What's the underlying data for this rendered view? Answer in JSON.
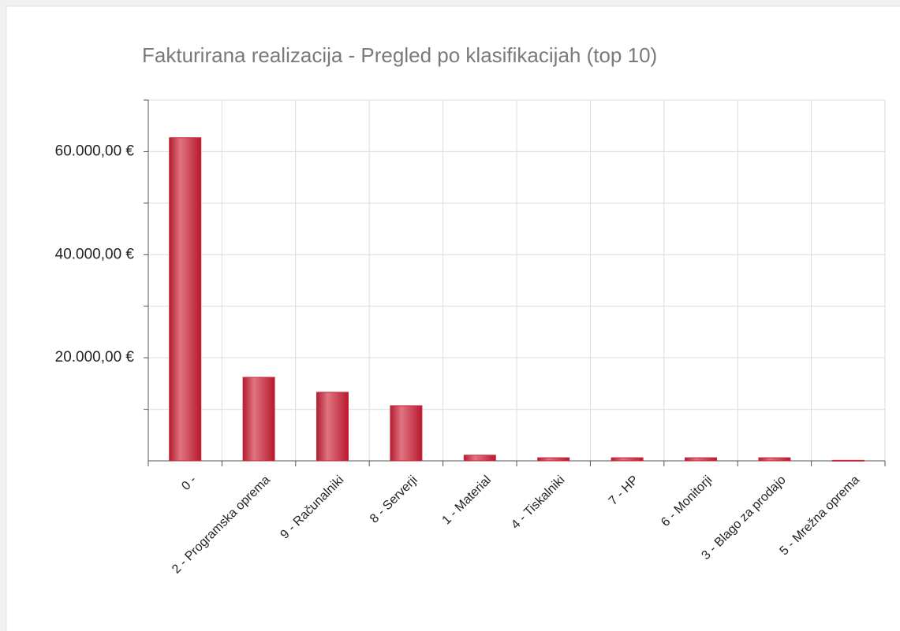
{
  "chart_data": {
    "type": "bar",
    "title": "Fakturirana realizacija - Pregled po klasifikacijah (top 10)",
    "categories": [
      "0 -",
      "2 - Programska oprema",
      "9 - Računalniki",
      "8 - Serverji",
      "1 - Material",
      "4 - Tiskalniki",
      "7 - HP",
      "6 - Monitorji",
      "3 - Blago za prodajo",
      "5 - Mrežna oprema"
    ],
    "values": [
      62700,
      16200,
      13300,
      10700,
      1100,
      600,
      600,
      600,
      600,
      100
    ],
    "color": "#c8273a",
    "ylim": [
      0,
      70000
    ],
    "yticks": [
      {
        "value": 20000,
        "label": "20.000,00 €"
      },
      {
        "value": 40000,
        "label": "40.000,00 €"
      },
      {
        "value": 60000,
        "label": "60.000,00 €"
      }
    ],
    "minor_yticks": [
      10000,
      30000,
      50000,
      70000
    ],
    "grid": true
  }
}
